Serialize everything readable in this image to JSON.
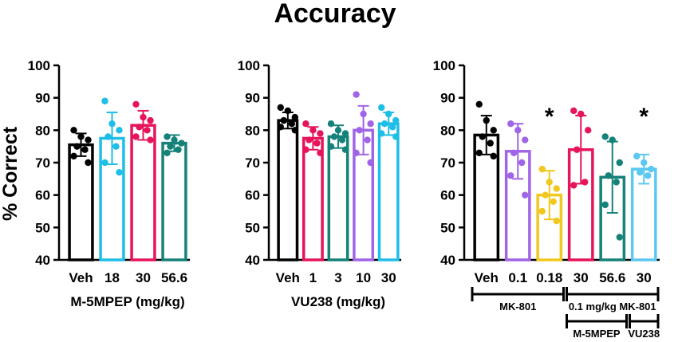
{
  "figure": {
    "title": "Accuracy",
    "ylabel": "% Correct"
  },
  "colors": {
    "black": "#000000",
    "cyan": "#1ebee6",
    "magenta": "#e6145a",
    "teal": "#148278",
    "purple": "#a064e6",
    "yellow": "#f0c81e",
    "lightblue": "#5ac8f0"
  },
  "chart_data": [
    {
      "type": "bar",
      "xlabel": "M-5MPEP (mg/kg)",
      "ylabel": "% Correct",
      "ylim": [
        40,
        100
      ],
      "yticks": [
        40,
        50,
        60,
        70,
        80,
        90,
        100
      ],
      "categories": [
        "Veh",
        "18",
        "30",
        "56.6"
      ],
      "series": [
        {
          "mean": 75.5,
          "sd": 3.5,
          "color": "black",
          "points": [
            80,
            78,
            77,
            75,
            74,
            72,
            70
          ]
        },
        {
          "mean": 77.5,
          "sd": 8,
          "color": "cyan",
          "points": [
            89,
            82,
            80,
            78,
            75,
            70,
            67
          ]
        },
        {
          "mean": 81.5,
          "sd": 4.5,
          "color": "magenta",
          "points": [
            88,
            84,
            83,
            81,
            80,
            78,
            77
          ]
        },
        {
          "mean": 76,
          "sd": 2.5,
          "color": "teal",
          "points": [
            78,
            77,
            76,
            75,
            74,
            73
          ]
        }
      ],
      "significance": [
        "",
        "",
        "",
        ""
      ]
    },
    {
      "type": "bar",
      "xlabel": "VU238 (mg/kg)",
      "ylabel": "",
      "ylim": [
        40,
        100
      ],
      "yticks": [
        40,
        50,
        60,
        70,
        80,
        90,
        100
      ],
      "categories": [
        "Veh",
        "1",
        "3",
        "10",
        "30"
      ],
      "series": [
        {
          "mean": 83,
          "sd": 2.5,
          "color": "black",
          "points": [
            87,
            86,
            84,
            83,
            82,
            81,
            80
          ]
        },
        {
          "mean": 77.5,
          "sd": 3.5,
          "color": "magenta",
          "points": [
            82,
            80,
            79,
            77,
            76,
            74,
            73
          ]
        },
        {
          "mean": 78,
          "sd": 3.5,
          "color": "teal",
          "points": [
            82,
            80,
            79,
            78,
            77,
            75,
            74
          ]
        },
        {
          "mean": 80,
          "sd": 7.5,
          "color": "purple",
          "points": [
            91,
            85,
            82,
            80,
            77,
            73,
            70
          ]
        },
        {
          "mean": 82,
          "sd": 3.5,
          "color": "cyan",
          "points": [
            87,
            85,
            83,
            82,
            81,
            79,
            78
          ]
        }
      ],
      "significance": [
        "",
        "",
        "",
        "",
        ""
      ]
    },
    {
      "type": "bar",
      "xlabel": "",
      "ylabel": "",
      "ylim": [
        40,
        100
      ],
      "yticks": [
        40,
        50,
        60,
        70,
        80,
        90,
        100
      ],
      "categories": [
        "Veh",
        "0.1",
        "0.18",
        "30",
        "56.6",
        "30"
      ],
      "series": [
        {
          "mean": 78.5,
          "sd": 6,
          "color": "black",
          "points": [
            88,
            83,
            80,
            78,
            76,
            73,
            72
          ]
        },
        {
          "mean": 73.5,
          "sd": 8.5,
          "color": "purple",
          "points": [
            82,
            80,
            77,
            73,
            70,
            66,
            60
          ]
        },
        {
          "mean": 60,
          "sd": 7.5,
          "color": "yellow",
          "points": [
            68,
            64,
            62,
            60,
            58,
            55,
            52
          ]
        },
        {
          "mean": 74,
          "sd": 10.5,
          "color": "magenta",
          "points": [
            86,
            85,
            80,
            74,
            64,
            63
          ]
        },
        {
          "mean": 65.5,
          "sd": 11,
          "color": "teal",
          "points": [
            78,
            77,
            70,
            66,
            64,
            57,
            47
          ]
        },
        {
          "mean": 68,
          "sd": 4.5,
          "color": "lightblue",
          "points": [
            72,
            70,
            68,
            67,
            66
          ]
        }
      ],
      "significance": [
        "",
        "",
        "*",
        "",
        "",
        "*"
      ],
      "groups": [
        {
          "label": "MK-801",
          "from": 0,
          "to": 2
        },
        {
          "label": "0.1 mg/kg MK-801",
          "from": 3,
          "to": 5
        },
        {
          "label": "M-5MPEP",
          "from": 3,
          "to": 4
        },
        {
          "label": "VU238",
          "from": 5,
          "to": 5
        }
      ]
    }
  ]
}
